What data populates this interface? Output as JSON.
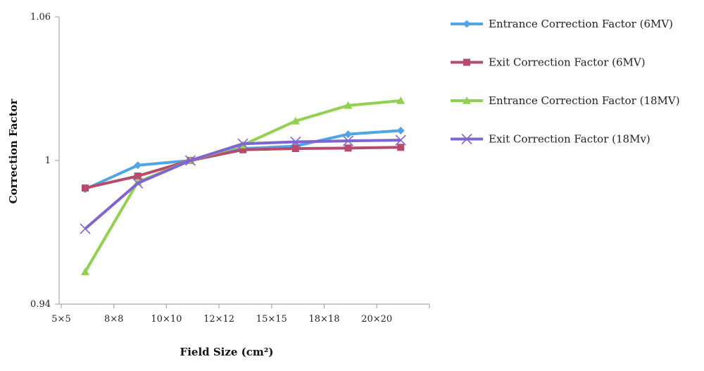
{
  "chart_data": {
    "type": "line",
    "xlabel": "Field Size (cm²)",
    "ylabel": "Correction Factor",
    "ylim": [
      0.94,
      1.06
    ],
    "yticks": [
      "0.94",
      "1",
      "1.06"
    ],
    "xtick_labels": [
      "5×5",
      "8×8",
      "10×10",
      "12×12",
      "15×15",
      "18×18",
      "20×20"
    ],
    "legend_position": "right",
    "grid": false,
    "series": [
      {
        "name": "Entrance Correction Factor (6MV)",
        "color": "#4ea6e6",
        "marker": "diamond",
        "values": [
          0.988,
          0.998,
          1.0,
          1.005,
          1.006,
          1.011,
          1.0125
        ]
      },
      {
        "name": "Exit Correction Factor (6MV)",
        "color": "#b84a6b",
        "marker": "square",
        "values": [
          0.9885,
          0.9935,
          1.0,
          1.0045,
          1.005,
          1.0052,
          1.0055
        ]
      },
      {
        "name": "Entrance Correction Factor (18MV)",
        "color": "#92d050",
        "marker": "triangle",
        "values": [
          0.9535,
          0.991,
          1.0,
          1.0065,
          1.0165,
          1.023,
          1.025
        ]
      },
      {
        "name": "Exit Correction Factor (18Mv)",
        "color": "#8064d2",
        "marker": "x",
        "values": [
          0.9715,
          0.9905,
          1.0,
          1.007,
          1.0078,
          1.0082,
          1.0085
        ]
      }
    ]
  }
}
